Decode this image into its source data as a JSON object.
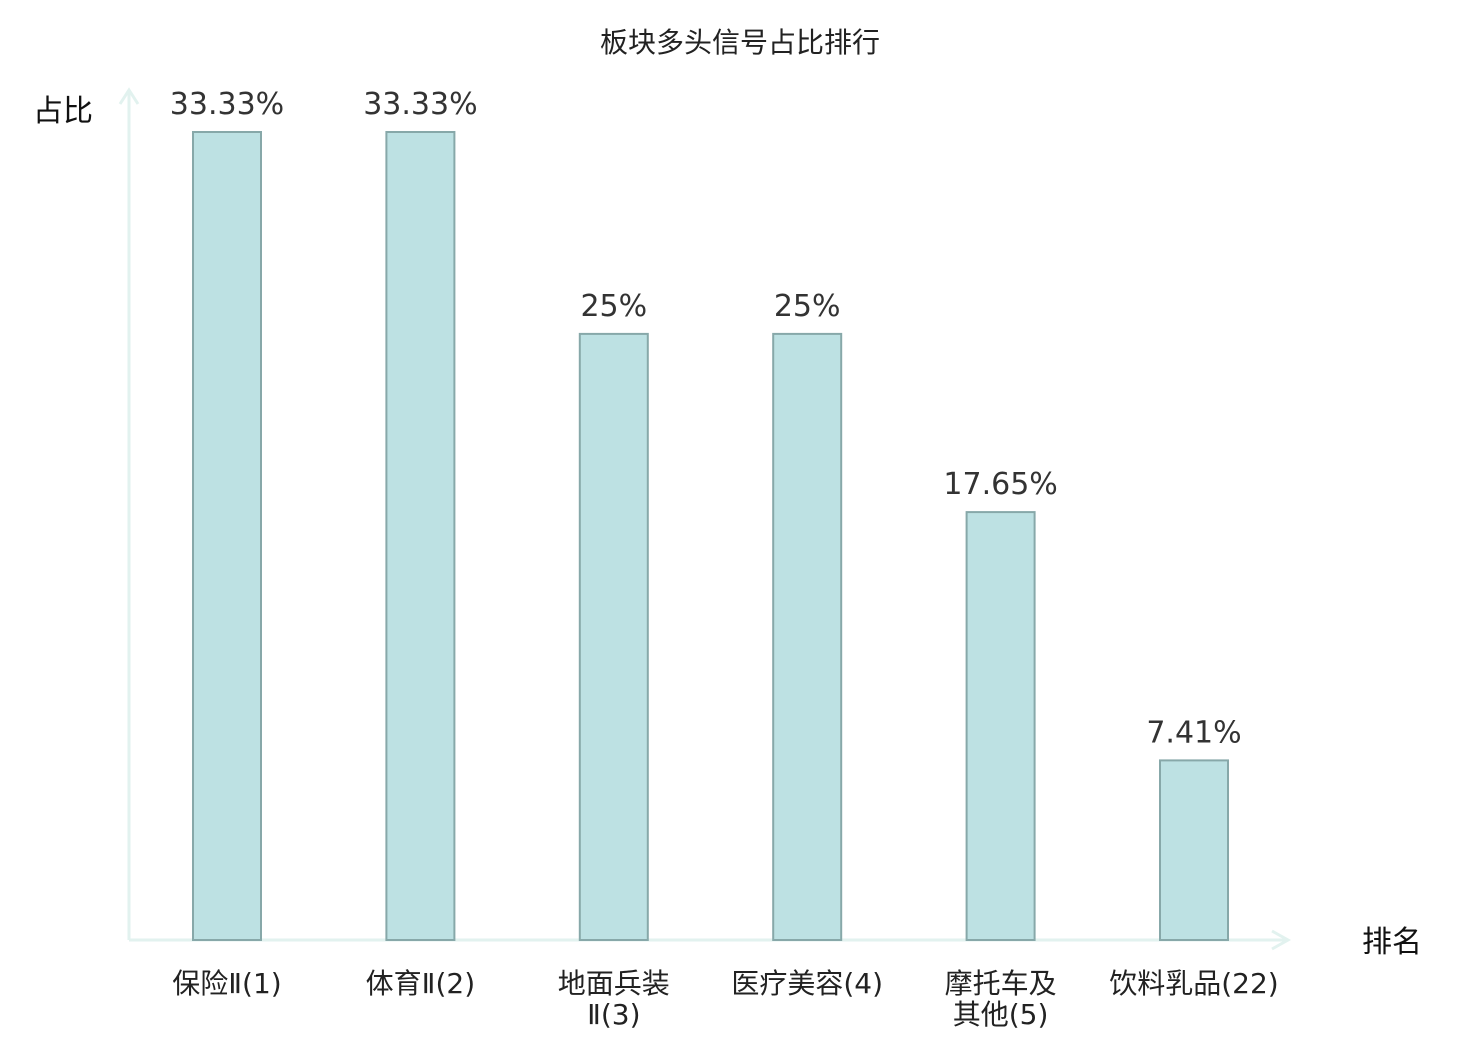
{
  "chart_data": {
    "type": "bar",
    "title": "板块多头信号占比排行",
    "xlabel": "排名",
    "ylabel": "占比",
    "ylim": [
      0,
      35
    ],
    "grid": false,
    "legend": "none",
    "categories": [
      [
        "保险Ⅱ(1)"
      ],
      [
        "体育Ⅱ(2)"
      ],
      [
        "地面兵装",
        "Ⅱ(3)"
      ],
      [
        "医疗美容(4)"
      ],
      [
        "摩托车及",
        "其他(5)"
      ],
      [
        "饮料乳品(22)"
      ]
    ],
    "values": [
      33.33,
      33.33,
      25,
      25,
      17.65,
      7.41
    ],
    "value_labels": [
      "33.33%",
      "33.33%",
      "25%",
      "25%",
      "17.65%",
      "7.41%"
    ],
    "highlight_index": 5,
    "colors": {
      "bar_fill": "#bde1e3",
      "bar_stroke": "#87a8a9",
      "axis": "#e2f2ef",
      "highlight_text": "#e0161d",
      "text": "#222222"
    }
  }
}
